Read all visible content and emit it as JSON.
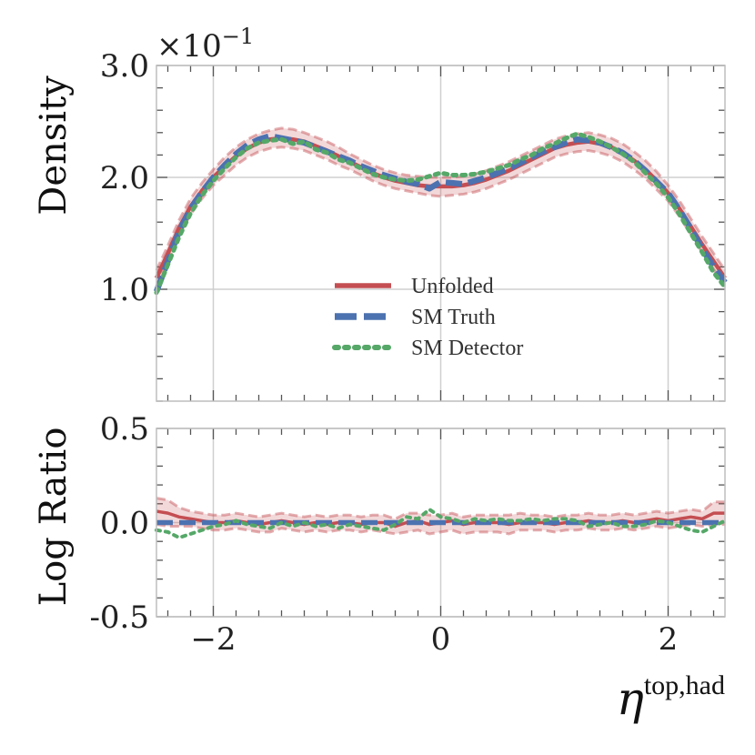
{
  "chart_data": {
    "type": "line",
    "panels": {
      "top": {
        "ylabel": "Density",
        "ylim": [
          0.0,
          3.0
        ],
        "yticks": [
          1.0,
          2.0,
          3.0
        ],
        "ytick_labels": [
          "1.0",
          "2.0",
          "3.0"
        ],
        "scale_label_base": "×10",
        "scale_label_exp": "−1"
      },
      "bottom": {
        "ylabel": "Log Ratio",
        "ylim": [
          -0.5,
          0.5
        ],
        "yticks": [
          -0.5,
          0.0,
          0.5
        ],
        "ytick_labels": [
          "-0.5",
          "0.0",
          "0.5"
        ]
      }
    },
    "xlabel_main": "η",
    "xlabel_sup": "top,had",
    "xlim": [
      -2.5,
      2.5
    ],
    "xticks": [
      -2,
      0,
      2
    ],
    "xtick_labels": [
      "−2",
      "0",
      "2"
    ],
    "x": [
      -2.5,
      -2.4,
      -2.3,
      -2.2,
      -2.1,
      -2.0,
      -1.9,
      -1.8,
      -1.7,
      -1.6,
      -1.5,
      -1.4,
      -1.3,
      -1.2,
      -1.1,
      -1.0,
      -0.9,
      -0.8,
      -0.7,
      -0.6,
      -0.5,
      -0.4,
      -0.3,
      -0.2,
      -0.1,
      0.0,
      0.1,
      0.2,
      0.3,
      0.4,
      0.5,
      0.6,
      0.7,
      0.8,
      0.9,
      1.0,
      1.1,
      1.2,
      1.3,
      1.4,
      1.5,
      1.6,
      1.7,
      1.8,
      1.9,
      2.0,
      2.1,
      2.2,
      2.3,
      2.4,
      2.5
    ],
    "series": [
      {
        "name": "Unfolded",
        "color": "#c44e52",
        "style": "solid",
        "values": [
          1.1,
          1.32,
          1.55,
          1.74,
          1.88,
          2.0,
          2.1,
          2.19,
          2.26,
          2.31,
          2.34,
          2.35,
          2.34,
          2.32,
          2.28,
          2.24,
          2.19,
          2.14,
          2.09,
          2.04,
          2.0,
          1.97,
          1.95,
          1.93,
          1.92,
          1.92,
          1.92,
          1.93,
          1.95,
          1.98,
          2.02,
          2.06,
          2.11,
          2.16,
          2.21,
          2.26,
          2.29,
          2.31,
          2.32,
          2.3,
          2.27,
          2.22,
          2.15,
          2.07,
          1.97,
          1.86,
          1.72,
          1.56,
          1.4,
          1.25,
          1.1
        ],
        "band_upper": [
          1.17,
          1.39,
          1.62,
          1.81,
          1.95,
          2.07,
          2.18,
          2.27,
          2.34,
          2.39,
          2.42,
          2.44,
          2.43,
          2.4,
          2.36,
          2.32,
          2.27,
          2.21,
          2.16,
          2.11,
          2.07,
          2.04,
          2.02,
          2.01,
          2.0,
          2.0,
          2.0,
          2.01,
          2.03,
          2.06,
          2.1,
          2.14,
          2.19,
          2.24,
          2.29,
          2.34,
          2.37,
          2.39,
          2.4,
          2.38,
          2.35,
          2.3,
          2.23,
          2.15,
          2.05,
          1.93,
          1.79,
          1.63,
          1.47,
          1.32,
          1.17
        ],
        "band_lower": [
          1.03,
          1.25,
          1.48,
          1.67,
          1.81,
          1.93,
          2.02,
          2.11,
          2.18,
          2.23,
          2.26,
          2.27,
          2.26,
          2.24,
          2.2,
          2.16,
          2.11,
          2.07,
          2.02,
          1.97,
          1.93,
          1.9,
          1.88,
          1.86,
          1.84,
          1.83,
          1.84,
          1.85,
          1.87,
          1.9,
          1.94,
          1.98,
          2.03,
          2.08,
          2.13,
          2.18,
          2.21,
          2.23,
          2.24,
          2.22,
          2.19,
          2.14,
          2.07,
          1.99,
          1.89,
          1.79,
          1.65,
          1.49,
          1.33,
          1.18,
          1.03
        ],
        "log_ratio": [
          0.06,
          0.05,
          0.03,
          0.02,
          0.01,
          0.0,
          0.0,
          0.01,
          0.0,
          -0.01,
          0.0,
          0.01,
          0.0,
          -0.01,
          0.0,
          -0.01,
          0.0,
          0.0,
          -0.01,
          0.0,
          0.0,
          -0.02,
          0.0,
          0.01,
          -0.01,
          0.0,
          0.01,
          -0.01,
          0.0,
          0.0,
          0.0,
          -0.01,
          0.0,
          0.0,
          0.0,
          -0.01,
          0.0,
          0.0,
          0.01,
          0.0,
          0.0,
          0.01,
          0.0,
          0.01,
          0.02,
          0.01,
          0.02,
          0.03,
          0.02,
          0.05,
          0.05
        ],
        "log_ratio_upper": [
          0.13,
          0.12,
          0.08,
          0.06,
          0.05,
          0.04,
          0.04,
          0.05,
          0.04,
          0.03,
          0.04,
          0.05,
          0.04,
          0.03,
          0.04,
          0.03,
          0.04,
          0.04,
          0.03,
          0.04,
          0.04,
          0.02,
          0.05,
          0.05,
          0.04,
          0.04,
          0.05,
          0.03,
          0.04,
          0.04,
          0.04,
          0.04,
          0.05,
          0.04,
          0.04,
          0.03,
          0.04,
          0.04,
          0.05,
          0.04,
          0.04,
          0.05,
          0.04,
          0.05,
          0.06,
          0.05,
          0.06,
          0.07,
          0.06,
          0.11,
          0.11
        ],
        "log_ratio_lower": [
          -0.01,
          -0.02,
          -0.02,
          -0.02,
          -0.03,
          -0.04,
          -0.04,
          -0.03,
          -0.04,
          -0.05,
          -0.05,
          -0.03,
          -0.04,
          -0.05,
          -0.04,
          -0.05,
          -0.04,
          -0.04,
          -0.05,
          -0.04,
          -0.05,
          -0.06,
          -0.05,
          -0.04,
          -0.06,
          -0.05,
          -0.04,
          -0.06,
          -0.05,
          -0.05,
          -0.05,
          -0.06,
          -0.04,
          -0.04,
          -0.04,
          -0.05,
          -0.04,
          -0.04,
          -0.03,
          -0.04,
          -0.04,
          -0.03,
          -0.04,
          -0.03,
          -0.02,
          -0.03,
          -0.02,
          -0.01,
          -0.02,
          -0.01,
          -0.01
        ]
      },
      {
        "name": "SM Truth",
        "color": "#4c72b0",
        "style": "dashed",
        "values": [
          0.98,
          1.25,
          1.52,
          1.72,
          1.87,
          2.0,
          2.11,
          2.21,
          2.29,
          2.34,
          2.37,
          2.35,
          2.33,
          2.31,
          2.27,
          2.23,
          2.19,
          2.15,
          2.1,
          2.06,
          2.02,
          1.99,
          1.96,
          1.94,
          1.9,
          1.96,
          1.95,
          1.94,
          1.97,
          2.0,
          2.04,
          2.08,
          2.13,
          2.18,
          2.23,
          2.27,
          2.31,
          2.34,
          2.33,
          2.31,
          2.27,
          2.22,
          2.15,
          2.06,
          1.96,
          1.86,
          1.71,
          1.54,
          1.36,
          1.2,
          1.06
        ],
        "log_ratio": [
          0.0,
          0.0,
          0.0,
          0.0,
          0.0,
          0.0,
          0.0,
          0.0,
          0.0,
          0.0,
          0.0,
          0.0,
          0.0,
          0.0,
          0.0,
          0.0,
          0.0,
          0.0,
          0.0,
          0.0,
          0.0,
          0.0,
          0.0,
          0.0,
          0.0,
          0.0,
          0.0,
          0.0,
          0.0,
          0.0,
          0.0,
          0.0,
          0.0,
          0.0,
          0.0,
          0.0,
          0.0,
          0.0,
          0.0,
          0.0,
          0.0,
          0.0,
          0.0,
          0.0,
          0.0,
          0.0,
          0.0,
          0.0,
          0.0,
          0.0,
          0.0
        ]
      },
      {
        "name": "SM Detector",
        "color": "#55a868",
        "style": "dotted",
        "values": [
          0.97,
          1.22,
          1.47,
          1.68,
          1.84,
          1.97,
          2.08,
          2.18,
          2.26,
          2.31,
          2.33,
          2.34,
          2.3,
          2.32,
          2.25,
          2.22,
          2.16,
          2.13,
          2.08,
          2.03,
          2.0,
          1.98,
          1.97,
          1.98,
          2.01,
          2.04,
          2.02,
          2.02,
          2.03,
          2.05,
          2.08,
          2.11,
          2.16,
          2.2,
          2.26,
          2.3,
          2.35,
          2.39,
          2.36,
          2.32,
          2.27,
          2.21,
          2.14,
          2.04,
          1.94,
          1.82,
          1.67,
          1.5,
          1.33,
          1.15,
          1.02
        ],
        "log_ratio": [
          -0.04,
          -0.05,
          -0.08,
          -0.06,
          -0.04,
          -0.02,
          -0.01,
          0.01,
          -0.01,
          -0.02,
          -0.03,
          0.0,
          -0.02,
          0.0,
          -0.02,
          -0.01,
          -0.03,
          -0.01,
          -0.02,
          -0.03,
          -0.04,
          -0.01,
          0.03,
          0.02,
          0.07,
          0.03,
          0.02,
          0.0,
          0.02,
          0.01,
          0.02,
          0.01,
          0.01,
          0.02,
          0.01,
          0.02,
          0.02,
          0.01,
          -0.02,
          -0.01,
          0.0,
          -0.02,
          -0.02,
          -0.01,
          0.01,
          0.0,
          -0.02,
          -0.04,
          -0.05,
          -0.02,
          0.01
        ]
      }
    ],
    "legend_position": "center"
  }
}
